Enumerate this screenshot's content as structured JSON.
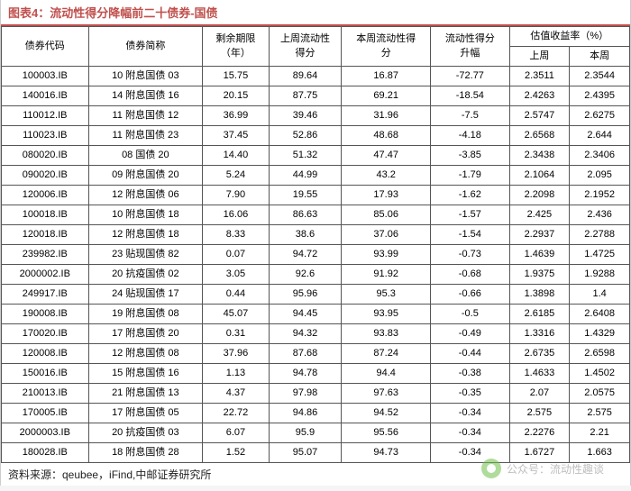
{
  "title": "图表4：流动性得分降幅前二十债券-国债",
  "columns": {
    "code": "债券代码",
    "name": "债券简称",
    "term": "剩余期限\n（年）",
    "prev": "上周流动性\n得分",
    "curr": "本周流动性得\n分",
    "chg": "流动性得分\n升幅",
    "yield_group": "估值收益率（%）",
    "yield_prev": "上周",
    "yield_curr": "本周"
  },
  "rows": [
    [
      "100003.IB",
      "10 附息国债 03",
      "15.75",
      "89.64",
      "16.87",
      "-72.77",
      "2.3511",
      "2.3544"
    ],
    [
      "140016.IB",
      "14 附息国债 16",
      "20.15",
      "87.75",
      "69.21",
      "-18.54",
      "2.4263",
      "2.4395"
    ],
    [
      "110012.IB",
      "11 附息国债 12",
      "36.99",
      "39.46",
      "31.96",
      "-7.5",
      "2.5747",
      "2.6275"
    ],
    [
      "110023.IB",
      "11 附息国债 23",
      "37.45",
      "52.86",
      "48.68",
      "-4.18",
      "2.6568",
      "2.644"
    ],
    [
      "080020.IB",
      "08 国债 20",
      "14.40",
      "51.32",
      "47.47",
      "-3.85",
      "2.3438",
      "2.3406"
    ],
    [
      "090020.IB",
      "09 附息国债 20",
      "5.24",
      "44.99",
      "43.2",
      "-1.79",
      "2.1064",
      "2.095"
    ],
    [
      "120006.IB",
      "12 附息国债 06",
      "7.90",
      "19.55",
      "17.93",
      "-1.62",
      "2.2098",
      "2.1952"
    ],
    [
      "100018.IB",
      "10 附息国债 18",
      "16.06",
      "86.63",
      "85.06",
      "-1.57",
      "2.425",
      "2.436"
    ],
    [
      "120018.IB",
      "12 附息国债 18",
      "8.33",
      "38.6",
      "37.06",
      "-1.54",
      "2.2937",
      "2.2788"
    ],
    [
      "239982.IB",
      "23 贴现国债 82",
      "0.07",
      "94.72",
      "93.99",
      "-0.73",
      "1.4639",
      "1.4725"
    ],
    [
      "2000002.IB",
      "20 抗疫国债 02",
      "3.05",
      "92.6",
      "91.92",
      "-0.68",
      "1.9375",
      "1.9288"
    ],
    [
      "249917.IB",
      "24 贴现国债 17",
      "0.44",
      "95.96",
      "95.3",
      "-0.66",
      "1.3898",
      "1.4"
    ],
    [
      "190008.IB",
      "19 附息国债 08",
      "45.07",
      "94.45",
      "93.95",
      "-0.5",
      "2.6185",
      "2.6408"
    ],
    [
      "170020.IB",
      "17 附息国债 20",
      "0.31",
      "94.32",
      "93.83",
      "-0.49",
      "1.3316",
      "1.4329"
    ],
    [
      "120008.IB",
      "12 附息国债 08",
      "37.96",
      "87.68",
      "87.24",
      "-0.44",
      "2.6735",
      "2.6598"
    ],
    [
      "150016.IB",
      "15 附息国债 16",
      "1.13",
      "94.78",
      "94.4",
      "-0.38",
      "1.4633",
      "1.4502"
    ],
    [
      "210013.IB",
      "21 附息国债 13",
      "4.37",
      "97.98",
      "97.63",
      "-0.35",
      "2.07",
      "2.0575"
    ],
    [
      "170005.IB",
      "17 附息国债 05",
      "22.72",
      "94.86",
      "94.52",
      "-0.34",
      "2.575",
      "2.575"
    ],
    [
      "2000003.IB",
      "20 抗疫国债 03",
      "6.07",
      "95.9",
      "95.56",
      "-0.34",
      "2.2276",
      "2.21"
    ],
    [
      "180028.IB",
      "18 附息国债 28",
      "1.52",
      "95.07",
      "94.73",
      "-0.34",
      "1.6727",
      "1.663"
    ]
  ],
  "source": "资料来源：qeubee，iFind,中邮证券研究所",
  "watermark": "公众号：流动性趣谈",
  "style": {
    "accent": "#c0504d",
    "border": "#555",
    "bg": "#ffffff",
    "font_main": 11,
    "font_title": 13
  }
}
